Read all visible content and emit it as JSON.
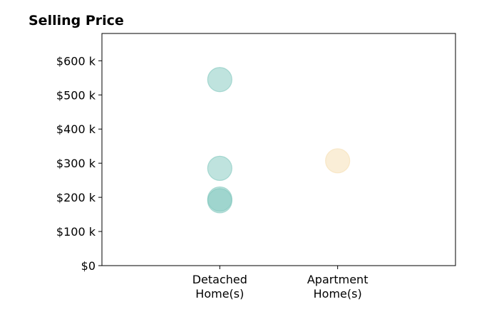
{
  "chart_data": {
    "type": "scatter",
    "title": "Selling Price",
    "xlabel": "",
    "ylabel": "",
    "categories": [
      [
        "Detached",
        "Home(s)"
      ],
      [
        "Apartment",
        "Home(s)"
      ]
    ],
    "xlim": [
      -1,
      2
    ],
    "ylim": [
      0,
      680000
    ],
    "y_ticks": [
      0,
      100000,
      200000,
      300000,
      400000,
      500000,
      600000
    ],
    "y_tick_labels": [
      "$0",
      "$100 k",
      "$200 k",
      "$300 k",
      "$400 k",
      "$500 k",
      "$600 k"
    ],
    "grid": false,
    "legend": "none",
    "series": [
      {
        "category_index": 0,
        "color": "#7fc7bd",
        "values": [
          545000,
          285000,
          195000,
          190000
        ]
      },
      {
        "category_index": 1,
        "color": "#f5deb0",
        "values": [
          307000
        ]
      }
    ]
  }
}
